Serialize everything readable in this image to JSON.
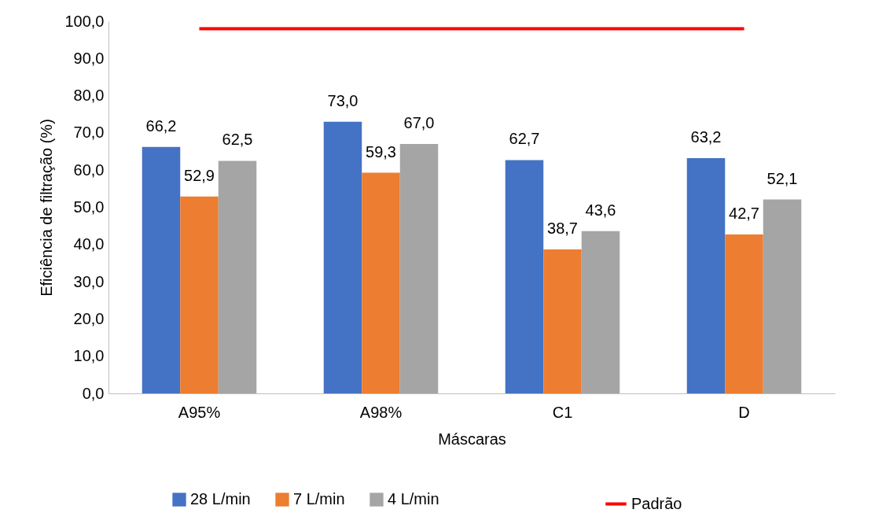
{
  "chart_data": {
    "type": "bar",
    "xlabel": "Máscaras",
    "ylabel": "Eficiência de filtração (%)",
    "categories": [
      "A95%",
      "A98%",
      "C1",
      "D"
    ],
    "series": [
      {
        "name": "28 L/min",
        "color": "#4472c4",
        "values": [
          66.2,
          73.0,
          62.7,
          63.2
        ],
        "value_labels": [
          "66,2",
          "73,0",
          "62,7",
          "63,2"
        ]
      },
      {
        "name": "7 L/min",
        "color": "#ed7d31",
        "values": [
          52.9,
          59.3,
          38.7,
          42.7
        ],
        "value_labels": [
          "52,9",
          "59,3",
          "38,7",
          "42,7"
        ]
      },
      {
        "name": "4 L/min",
        "color": "#a5a5a5",
        "values": [
          62.5,
          67.0,
          43.6,
          52.1
        ],
        "value_labels": [
          "62,5",
          "67,0",
          "43,6",
          "52,1"
        ]
      },
      {
        "name": "Padrão",
        "type": "line",
        "color": "#ff0000",
        "values": [
          98,
          98,
          98,
          98
        ]
      }
    ],
    "ylim": [
      0,
      100
    ],
    "yticks": [
      {
        "value": 0,
        "label": "0,0"
      },
      {
        "value": 10,
        "label": "10,0"
      },
      {
        "value": 20,
        "label": "20,0"
      },
      {
        "value": 30,
        "label": "30,0"
      },
      {
        "value": 40,
        "label": "40,0"
      },
      {
        "value": 50,
        "label": "50,0"
      },
      {
        "value": 60,
        "label": "60,0"
      },
      {
        "value": 70,
        "label": "70,0"
      },
      {
        "value": 80,
        "label": "80,0"
      },
      {
        "value": 90,
        "label": "90,0"
      },
      {
        "value": 100,
        "label": "100,0"
      }
    ],
    "legend": "bottom"
  }
}
